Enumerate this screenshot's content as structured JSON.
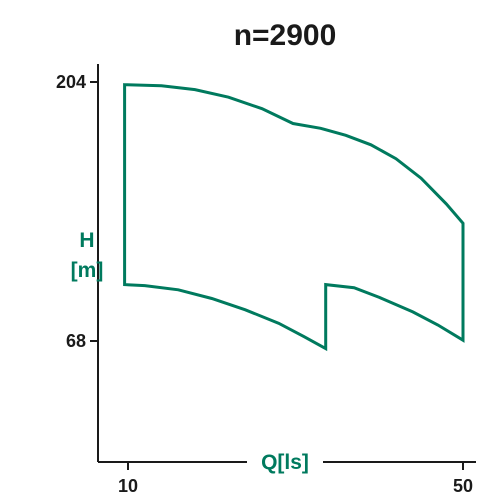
{
  "chart_data": {
    "type": "line",
    "title": "n=2900",
    "xlabel": "Q[ls]",
    "ylabel": [
      "H",
      "[m]"
    ],
    "x_ticks": [
      10,
      50
    ],
    "y_ticks": [
      204,
      68
    ],
    "xlim": [
      10,
      50
    ],
    "ylim": [
      68,
      204
    ],
    "grid": false,
    "legend": "none",
    "colors": {
      "curve": "#007a5e",
      "axis": "#1a1a1a",
      "label": "#007a5e"
    },
    "series": [
      {
        "points": [
          [
            9.6,
            202.6
          ],
          [
            14,
            202
          ],
          [
            18,
            200
          ],
          [
            22,
            196
          ],
          [
            26,
            190
          ],
          [
            29.7,
            182.2
          ],
          [
            33,
            179.7
          ],
          [
            36,
            176
          ],
          [
            39,
            171
          ],
          [
            42,
            163.7
          ],
          [
            45,
            153.5
          ],
          [
            48,
            140
          ],
          [
            50,
            129.8
          ],
          [
            50,
            68.4
          ],
          [
            47,
            76.4
          ],
          [
            44,
            83.3
          ],
          [
            40,
            90.9
          ],
          [
            37,
            96
          ],
          [
            33.6,
            97.6
          ],
          [
            33.6,
            64
          ],
          [
            31,
            70.3
          ],
          [
            28,
            77.3
          ],
          [
            24,
            84.4
          ],
          [
            20,
            90.3
          ],
          [
            16,
            94.9
          ],
          [
            12,
            97.1
          ],
          [
            9.6,
            97.6
          ],
          [
            9.6,
            202.6
          ]
        ]
      }
    ]
  }
}
